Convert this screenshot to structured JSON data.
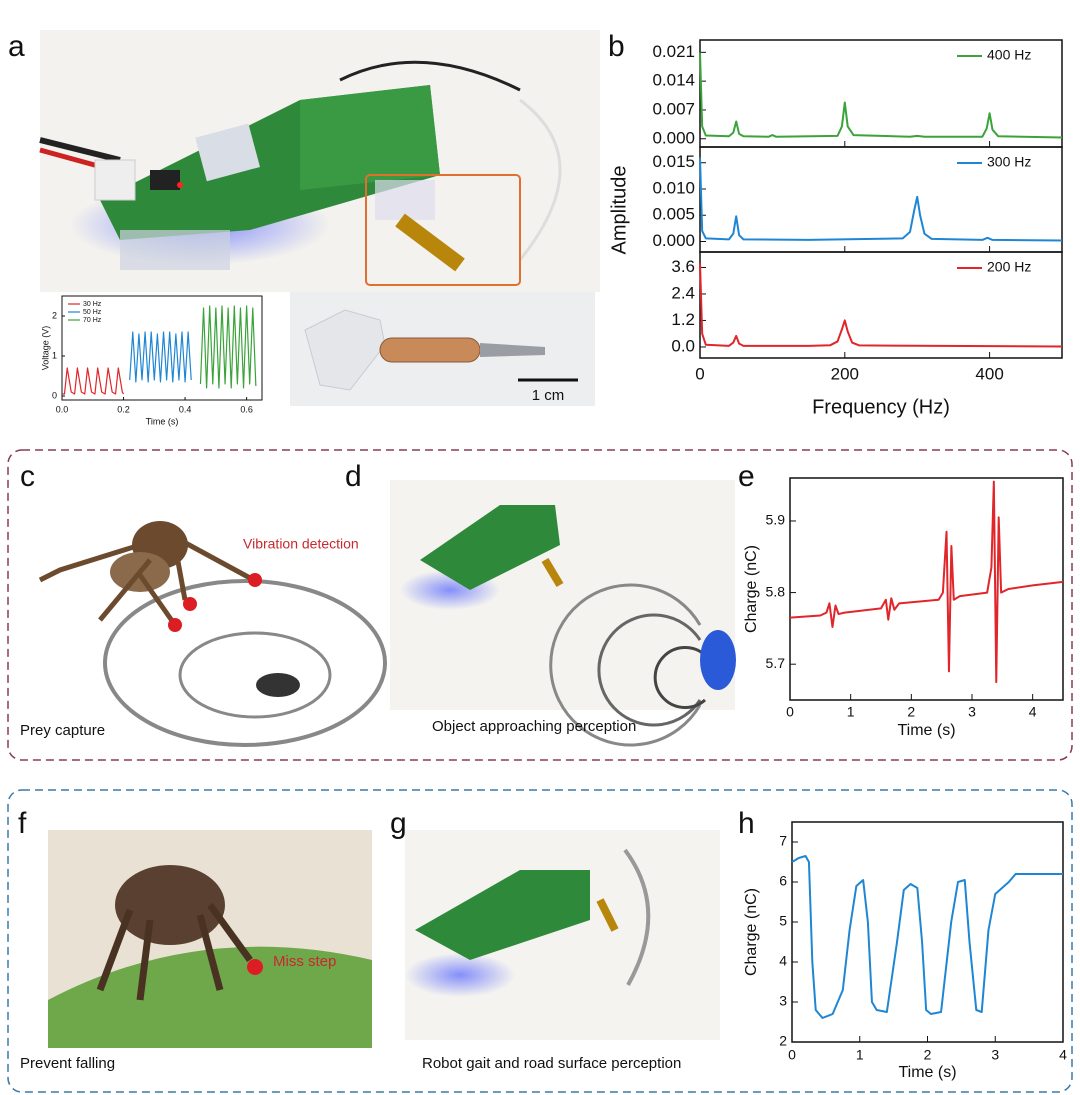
{
  "panel_labels": [
    "a",
    "b",
    "c",
    "d",
    "e",
    "f",
    "g",
    "h"
  ],
  "captions": {
    "c": "Prey capture",
    "d": "Object approaching perception",
    "f": "Prevent falling",
    "g": "Robot gait and road surface perception"
  },
  "annotations": {
    "vibration": "Vibration detection",
    "miss": "Miss step",
    "scale": "1 cm"
  },
  "chart_data": [
    {
      "type": "line",
      "xlabel": "Time (s)",
      "ylabel": "Voltage (V)",
      "xlim": [
        0,
        0.65
      ],
      "xticks": [
        {
          "value": 0,
          "label": "0.0"
        },
        {
          "value": 0.2,
          "label": "0.2"
        },
        {
          "value": 0.4,
          "label": "0.4"
        },
        {
          "value": 0.6,
          "label": "0.6"
        }
      ],
      "ylim": [
        -0.1,
        2.5
      ],
      "yticks": [
        0,
        1,
        2
      ],
      "series": [
        {
          "name": "30 Hz",
          "color": "#e0262a",
          "x": [
            0,
            0.008,
            0.017,
            0.03,
            0.041,
            0.05,
            0.063,
            0.074,
            0.083,
            0.096,
            0.107,
            0.116,
            0.129,
            0.14,
            0.15,
            0.163,
            0.174,
            0.183,
            0.196,
            0.2
          ],
          "values": [
            0.05,
            0.05,
            0.7,
            0.1,
            0.05,
            0.7,
            0.1,
            0.05,
            0.7,
            0.1,
            0.05,
            0.7,
            0.1,
            0.05,
            0.7,
            0.1,
            0.05,
            0.7,
            0.1,
            0.05
          ]
        },
        {
          "name": "50 Hz",
          "color": "#1f86d4",
          "x": [
            0.22,
            0.23,
            0.24,
            0.25,
            0.26,
            0.27,
            0.28,
            0.29,
            0.3,
            0.31,
            0.32,
            0.33,
            0.34,
            0.35,
            0.36,
            0.37,
            0.38,
            0.39,
            0.4,
            0.41,
            0.42
          ],
          "values": [
            0.4,
            1.6,
            0.35,
            1.55,
            0.4,
            1.6,
            0.35,
            1.6,
            0.4,
            1.55,
            0.35,
            1.6,
            0.4,
            1.6,
            0.35,
            1.55,
            0.4,
            1.6,
            0.35,
            1.6,
            0.4
          ]
        },
        {
          "name": "70 Hz",
          "color": "#3aa33a",
          "x": [
            0.45,
            0.46,
            0.47,
            0.48,
            0.49,
            0.5,
            0.51,
            0.52,
            0.53,
            0.54,
            0.55,
            0.56,
            0.57,
            0.58,
            0.59,
            0.6,
            0.61,
            0.62,
            0.63
          ],
          "values": [
            0.3,
            2.2,
            0.2,
            2.25,
            0.3,
            2.2,
            0.2,
            2.25,
            0.3,
            2.2,
            0.2,
            2.25,
            0.3,
            2.2,
            0.2,
            2.25,
            0.3,
            2.2,
            0.25
          ]
        }
      ]
    },
    {
      "type": "line",
      "xlim": [
        0,
        500
      ],
      "xticks": [
        0,
        200,
        400
      ],
      "ylim": [
        -0.002,
        0.024
      ],
      "yticks": [
        {
          "value": 0,
          "label": "0.000"
        },
        {
          "value": 0.007,
          "label": "0.007"
        },
        {
          "value": 0.014,
          "label": "0.014"
        },
        {
          "value": 0.021,
          "label": "0.021"
        }
      ],
      "x": [
        0,
        3,
        8,
        40,
        46,
        50,
        54,
        60,
        95,
        100,
        105,
        190,
        196,
        200,
        204,
        212,
        290,
        300,
        310,
        390,
        396,
        400,
        404,
        412,
        500
      ],
      "series": [
        {
          "name": "400 Hz",
          "color": "#3aa33a",
          "values": [
            0.021,
            0.003,
            0.0008,
            0.0006,
            0.0015,
            0.0042,
            0.0012,
            0.0006,
            0.0005,
            0.0009,
            0.0005,
            0.0007,
            0.003,
            0.0088,
            0.003,
            0.0009,
            0.0005,
            0.0007,
            0.0005,
            0.0005,
            0.0025,
            0.0062,
            0.0022,
            0.0006,
            0.0003
          ]
        }
      ]
    },
    {
      "type": "line",
      "ylabel": "Amplitude",
      "xlim": [
        0,
        500
      ],
      "xticks": [
        0,
        200,
        400
      ],
      "ylim": [
        -0.002,
        0.018
      ],
      "yticks": [
        {
          "value": 0,
          "label": "0.000"
        },
        {
          "value": 0.005,
          "label": "0.005"
        },
        {
          "value": 0.01,
          "label": "0.010"
        },
        {
          "value": 0.015,
          "label": "0.015"
        }
      ],
      "x": [
        0,
        3,
        8,
        40,
        46,
        50,
        54,
        60,
        150,
        280,
        290,
        296,
        300,
        304,
        310,
        320,
        390,
        397,
        404,
        500
      ],
      "series": [
        {
          "name": "300 Hz",
          "color": "#1f86d4",
          "values": [
            0.016,
            0.002,
            0.0006,
            0.0004,
            0.0015,
            0.0048,
            0.0012,
            0.0004,
            0.0003,
            0.0006,
            0.0018,
            0.006,
            0.0085,
            0.005,
            0.0015,
            0.0005,
            0.0003,
            0.0007,
            0.0003,
            0.0002
          ]
        }
      ]
    },
    {
      "type": "line",
      "xlabel": "Frequency (Hz)",
      "xlim": [
        0,
        500
      ],
      "xticks": [
        0,
        200,
        400
      ],
      "ylim": [
        -0.5,
        4.3
      ],
      "yticks": [
        {
          "value": 0,
          "label": "0.0"
        },
        1.2,
        2.4,
        3.6
      ],
      "x": [
        0,
        3,
        8,
        40,
        46,
        50,
        54,
        60,
        150,
        180,
        190,
        196,
        200,
        204,
        210,
        220,
        500
      ],
      "series": [
        {
          "name": "200 Hz",
          "color": "#e0262a",
          "values": [
            3.8,
            0.6,
            0.1,
            0.05,
            0.2,
            0.5,
            0.15,
            0.05,
            0.05,
            0.08,
            0.25,
            0.8,
            1.2,
            0.7,
            0.2,
            0.07,
            0.02
          ]
        }
      ]
    },
    {
      "type": "line",
      "xlabel": "Time (s)",
      "ylabel": "Charge (nC)",
      "xlim": [
        0,
        4.5
      ],
      "xticks": [
        0,
        1,
        2,
        3,
        4
      ],
      "ylim": [
        5.65,
        5.96
      ],
      "yticks": [
        5.7,
        5.8,
        5.9
      ],
      "x": [
        0,
        0.5,
        0.6,
        0.65,
        0.7,
        0.75,
        0.8,
        0.9,
        1.5,
        1.58,
        1.62,
        1.67,
        1.72,
        1.8,
        2.45,
        2.52,
        2.58,
        2.62,
        2.66,
        2.7,
        2.8,
        3.25,
        3.32,
        3.36,
        3.4,
        3.44,
        3.48,
        3.6,
        4.0,
        4.5
      ],
      "series": [
        {
          "color": "#e0262a",
          "values": [
            5.765,
            5.768,
            5.772,
            5.785,
            5.752,
            5.782,
            5.77,
            5.772,
            5.778,
            5.79,
            5.762,
            5.792,
            5.776,
            5.785,
            5.79,
            5.8,
            5.885,
            5.69,
            5.865,
            5.79,
            5.795,
            5.8,
            5.835,
            5.955,
            5.675,
            5.905,
            5.8,
            5.805,
            5.81,
            5.815
          ]
        }
      ]
    },
    {
      "type": "line",
      "xlabel": "Time (s)",
      "ylabel": "Charge (nC)",
      "xlim": [
        0,
        4
      ],
      "xticks": [
        0,
        1,
        2,
        3,
        4
      ],
      "ylim": [
        2,
        7.5
      ],
      "yticks": [
        2,
        3,
        4,
        5,
        6,
        7
      ],
      "x": [
        0,
        0.1,
        0.2,
        0.25,
        0.3,
        0.35,
        0.45,
        0.6,
        0.75,
        0.85,
        0.95,
        1.05,
        1.12,
        1.18,
        1.25,
        1.4,
        1.55,
        1.65,
        1.75,
        1.85,
        1.92,
        1.98,
        2.05,
        2.2,
        2.35,
        2.45,
        2.55,
        2.62,
        2.72,
        2.8,
        2.9,
        3.0,
        3.2,
        3.3,
        4.0
      ],
      "series": [
        {
          "color": "#1f86d4",
          "values": [
            6.5,
            6.6,
            6.65,
            6.5,
            4.0,
            2.8,
            2.6,
            2.7,
            3.3,
            4.8,
            5.9,
            6.05,
            5.0,
            3.0,
            2.8,
            2.75,
            4.5,
            5.8,
            5.95,
            5.85,
            4.5,
            2.8,
            2.7,
            2.75,
            5.0,
            6.0,
            6.05,
            4.5,
            2.8,
            2.75,
            4.8,
            5.7,
            6.0,
            6.2,
            6.2
          ]
        }
      ]
    }
  ]
}
